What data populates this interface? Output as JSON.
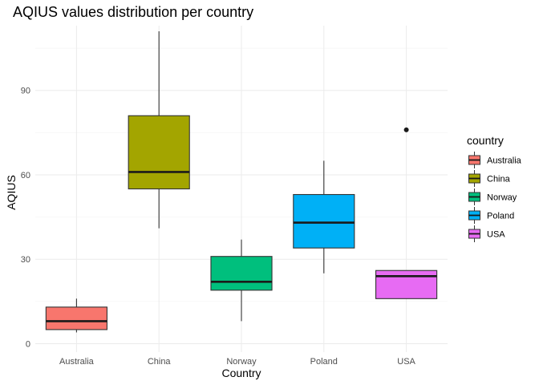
{
  "chart_data": {
    "type": "boxplot",
    "title": "AQIUS values distribution per country",
    "xlabel": "Country",
    "ylabel": "AQIUS",
    "ylim": [
      -3,
      113
    ],
    "yticks": [
      0,
      30,
      60,
      90
    ],
    "grid": true,
    "legend": {
      "title": "country",
      "position": "right"
    },
    "categories": [
      "Australia",
      "China",
      "Norway",
      "Poland",
      "USA"
    ],
    "boxes": [
      {
        "category": "Australia",
        "color": "#F8766D",
        "whisker_low": 4,
        "q1": 5,
        "median": 8,
        "q3": 13,
        "whisker_high": 16,
        "outliers": []
      },
      {
        "category": "China",
        "color": "#A3A500",
        "whisker_low": 41,
        "q1": 55,
        "median": 61,
        "q3": 81,
        "whisker_high": 111,
        "outliers": []
      },
      {
        "category": "Norway",
        "color": "#00BF7D",
        "whisker_low": 8,
        "q1": 19,
        "median": 22,
        "q3": 31,
        "whisker_high": 37,
        "outliers": []
      },
      {
        "category": "Poland",
        "color": "#00B0F6",
        "whisker_low": 25,
        "q1": 34,
        "median": 43,
        "q3": 53,
        "whisker_high": 65,
        "outliers": []
      },
      {
        "category": "USA",
        "color": "#E76BF3",
        "whisker_low": 16,
        "q1": 16,
        "median": 24,
        "q3": 26,
        "whisker_high": 26,
        "outliers": [
          76
        ]
      }
    ]
  }
}
